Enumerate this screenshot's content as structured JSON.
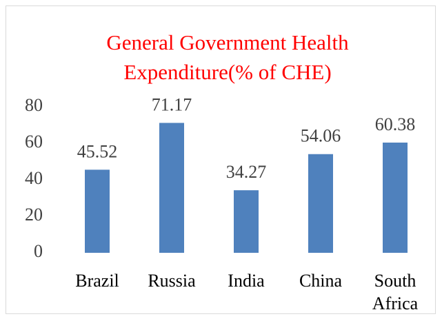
{
  "chart_data": {
    "type": "bar",
    "title": "General Government Health Expenditure(% of CHE)",
    "categories": [
      "Brazil",
      "Russia",
      "India",
      "China",
      "South Africa"
    ],
    "values": [
      45.52,
      71.17,
      34.27,
      54.06,
      60.38
    ],
    "color": "#4f81bd",
    "title_color": "#ff0000",
    "ylim": [
      0,
      80
    ],
    "yticks": [
      0,
      20,
      40,
      60,
      80
    ],
    "grid": false
  }
}
